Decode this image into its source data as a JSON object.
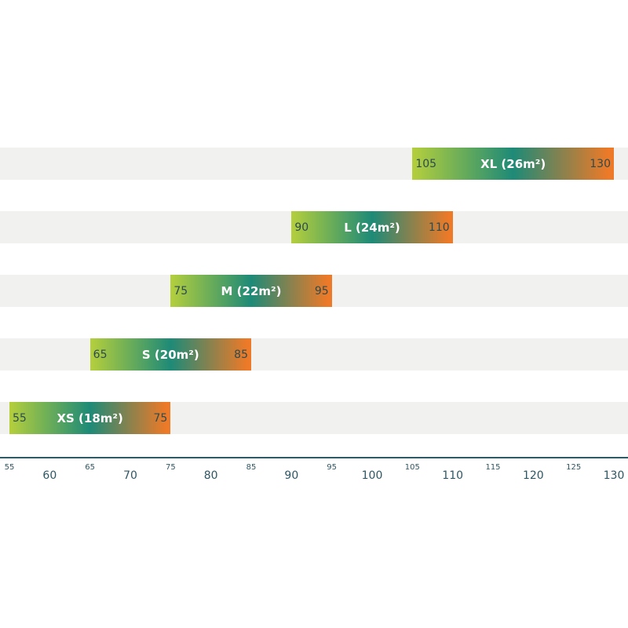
{
  "chart_data": {
    "type": "bar",
    "orientation": "horizontal-range",
    "categories": [
      "XL (26m²)",
      "L (24m²)",
      "M (22m²)",
      "S (20m²)",
      "XS (18m²)"
    ],
    "ranges": [
      [
        105,
        130
      ],
      [
        90,
        110
      ],
      [
        75,
        95
      ],
      [
        65,
        85
      ],
      [
        55,
        75
      ]
    ],
    "xlim": [
      55,
      130
    ],
    "minor_ticks": [
      55,
      65,
      75,
      85,
      95,
      105,
      115,
      125
    ],
    "major_ticks": [
      60,
      70,
      80,
      90,
      100,
      110,
      120,
      130
    ],
    "gradient_colors": [
      "#b5cf3c",
      "#1e8a77",
      "#ec7a28"
    ],
    "band_color": "#f1f1ef",
    "axis_color": "#2e5a66",
    "grid": false
  }
}
